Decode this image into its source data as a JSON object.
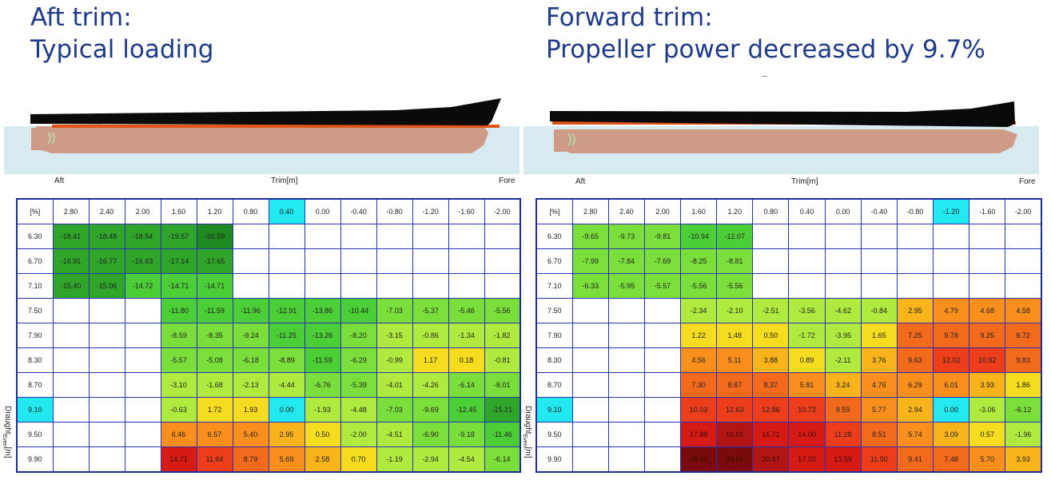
{
  "left": {
    "title_line1": "Aft trim:",
    "title_line2": "Typical loading",
    "aft_label": "Aft",
    "trim_label": "Trim[m]",
    "fore_label": "Fore",
    "draught_label": "Draught",
    "draught_sub": "Even",
    "draught_unit": "[m]",
    "corner": "[%]",
    "highlight_col": 6,
    "highlight_row": 7,
    "trims": [
      "2.80",
      "2.40",
      "2.00",
      "1.60",
      "1.20",
      "0.80",
      "0.40",
      "0.00",
      "-0.40",
      "-0.80",
      "-1.20",
      "-1.60",
      "-2.00"
    ],
    "draughts": [
      "6.30",
      "6.70",
      "7.10",
      "7.50",
      "7.90",
      "8.30",
      "8.70",
      "9.10",
      "9.50",
      "9.90"
    ],
    "cells": [
      [
        "-18.41",
        "-18.48",
        "-18.54",
        "-19.57",
        "-20.59",
        "",
        "",
        "",
        "",
        "",
        "",
        "",
        ""
      ],
      [
        "-16.91",
        "-16.77",
        "-16.63",
        "-17.14",
        "-17.65",
        "",
        "",
        "",
        "",
        "",
        "",
        "",
        ""
      ],
      [
        "-15.40",
        "-15.06",
        "-14.72",
        "-14.71",
        "-14.71",
        "",
        "",
        "",
        "",
        "",
        "",
        "",
        ""
      ],
      [
        "",
        "",
        "",
        "-11.80",
        "-11.59",
        "-11.96",
        "-12.91",
        "-13.86",
        "-10.44",
        "-7.03",
        "-5.37",
        "-5.46",
        "-5.56"
      ],
      [
        "",
        "",
        "",
        "-8.59",
        "-8.35",
        "-9.24",
        "-11.25",
        "-13.26",
        "-8.20",
        "-3.15",
        "-0.86",
        "-1.34",
        "-1.82"
      ],
      [
        "",
        "",
        "",
        "-5.57",
        "-5.08",
        "-6.18",
        "-8.89",
        "-11.59",
        "-6.29",
        "-0.99",
        "1.17",
        "0.18",
        "-0.81"
      ],
      [
        "",
        "",
        "",
        "-3.10",
        "-1.68",
        "-2.13",
        "-4.44",
        "-6.76",
        "-5.39",
        "-4.01",
        "-4.26",
        "-6.14",
        "-8.01"
      ],
      [
        "",
        "",
        "",
        "-0.63",
        "1.72",
        "1.93",
        "0.00",
        "-1.93",
        "-4.48",
        "-7.03",
        "-9.69",
        "-12.45",
        "-15.21"
      ],
      [
        "",
        "",
        "",
        "6.46",
        "6.57",
        "5.40",
        "2.95",
        "0.50",
        "-2.00",
        "-4.51",
        "-6.90",
        "-9.18",
        "-11.46"
      ],
      [
        "",
        "",
        "",
        "14.71",
        "11.64",
        "8.79",
        "5.69",
        "2.58",
        "0.70",
        "-1.19",
        "-2.94",
        "-4.54",
        "-6.14"
      ]
    ]
  },
  "right": {
    "title_line1": "Forward trim:",
    "title_line2": "Propeller power decreased by 9.7%",
    "aft_label": "Aft",
    "trim_label": "Trim[m]",
    "fore_label": "Fore",
    "draught_label": "Draught",
    "draught_sub": "Even",
    "draught_unit": "[m]",
    "corner": "[%]",
    "highlight_col": 10,
    "highlight_row": 7,
    "trims": [
      "2.80",
      "2.40",
      "2.00",
      "1.60",
      "1.20",
      "0.80",
      "0.40",
      "0.00",
      "-0.40",
      "-0.80",
      "-1.20",
      "-1.60",
      "-2.00"
    ],
    "draughts": [
      "6.30",
      "6.70",
      "7.10",
      "7.50",
      "7.90",
      "8.30",
      "8.70",
      "9.10",
      "9.50",
      "9.90"
    ],
    "cells": [
      [
        "-9.65",
        "-9.73",
        "-9.81",
        "-10.94",
        "-12.07",
        "",
        "",
        "",
        "",
        "",
        "",
        "",
        ""
      ],
      [
        "-7.99",
        "-7.84",
        "-7.69",
        "-8.25",
        "-8.81",
        "",
        "",
        "",
        "",
        "",
        "",
        "",
        ""
      ],
      [
        "-6.33",
        "-5.95",
        "-5.57",
        "-5.56",
        "-5.56",
        "",
        "",
        "",
        "",
        "",
        "",
        "",
        ""
      ],
      [
        "",
        "",
        "",
        "-2.34",
        "-2.10",
        "-2.51",
        "-3.56",
        "-4.62",
        "-0.84",
        "2.95",
        "4.79",
        "4.68",
        "4.58"
      ],
      [
        "",
        "",
        "",
        "1.22",
        "1.48",
        "0.50",
        "-1.72",
        "-3.95",
        "1.65",
        "7.25",
        "9.78",
        "9.25",
        "8.72"
      ],
      [
        "",
        "",
        "",
        "4.56",
        "5.11",
        "3.88",
        "0.89",
        "-2.11",
        "3.76",
        "9.63",
        "12.02",
        "10.92",
        "9.83"
      ],
      [
        "",
        "",
        "",
        "7.30",
        "8.87",
        "8.37",
        "5.81",
        "3.24",
        "4.76",
        "6.29",
        "6.01",
        "3.93",
        "1.86"
      ],
      [
        "",
        "",
        "",
        "10.03",
        "12.63",
        "12.86",
        "10.73",
        "8.59",
        "5.77",
        "2.94",
        "0.00",
        "-3.06",
        "-6.12"
      ],
      [
        "",
        "",
        "",
        "17.88",
        "18.01",
        "16.71",
        "14.00",
        "11.28",
        "8.51",
        "5.74",
        "3.09",
        "0.57",
        "-1.96"
      ],
      [
        "",
        "",
        "",
        "26.46",
        "23.61",
        "20.47",
        "17.03",
        "13.59",
        "11.50",
        "9.41",
        "7.48",
        "5.70",
        "3.93"
      ]
    ]
  },
  "colors": {
    "title": "#1f3a86",
    "water": "#d6eaf0",
    "hull": "#cf9a86",
    "deck": "#0a0a0a",
    "waterline": "#e0541a",
    "highlight": "#22e8f0",
    "grid": "#2633b4"
  }
}
